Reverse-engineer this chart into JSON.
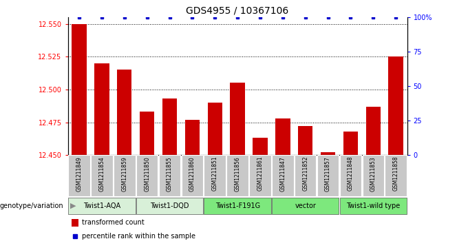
{
  "title": "GDS4955 / 10367106",
  "samples": [
    "GSM1211849",
    "GSM1211854",
    "GSM1211859",
    "GSM1211850",
    "GSM1211855",
    "GSM1211860",
    "GSM1211851",
    "GSM1211856",
    "GSM1211861",
    "GSM1211847",
    "GSM1211852",
    "GSM1211857",
    "GSM1211848",
    "GSM1211853",
    "GSM1211858"
  ],
  "bar_values": [
    12.55,
    12.52,
    12.515,
    12.483,
    12.493,
    12.477,
    12.49,
    12.505,
    12.463,
    12.478,
    12.472,
    12.452,
    12.468,
    12.487,
    12.525
  ],
  "percentile_values": [
    100,
    100,
    100,
    100,
    100,
    100,
    100,
    100,
    100,
    100,
    100,
    100,
    100,
    100,
    100
  ],
  "groups": [
    {
      "label": "Twist1-AQA",
      "start": 0,
      "end": 3,
      "color": "#d8f0d8"
    },
    {
      "label": "Twist1-DQD",
      "start": 3,
      "end": 6,
      "color": "#d8f0d8"
    },
    {
      "label": "Twist1-F191G",
      "start": 6,
      "end": 9,
      "color": "#7de87d"
    },
    {
      "label": "vector",
      "start": 9,
      "end": 12,
      "color": "#7de87d"
    },
    {
      "label": "Twist1-wild type",
      "start": 12,
      "end": 15,
      "color": "#7de87d"
    }
  ],
  "ylim_left": [
    12.45,
    12.555
  ],
  "ylim_right": [
    0,
    100
  ],
  "yticks_left": [
    12.45,
    12.475,
    12.5,
    12.525,
    12.55
  ],
  "yticks_right": [
    0,
    25,
    50,
    75,
    100
  ],
  "bar_color": "#cc0000",
  "percentile_color": "#0000cc",
  "bar_bottom": 12.45,
  "legend_transformed": "transformed count",
  "legend_percentile": "percentile rank within the sample",
  "genotype_label": "genotype/variation",
  "sample_box_color": "#c8c8c8",
  "group_border_color": "#555555"
}
